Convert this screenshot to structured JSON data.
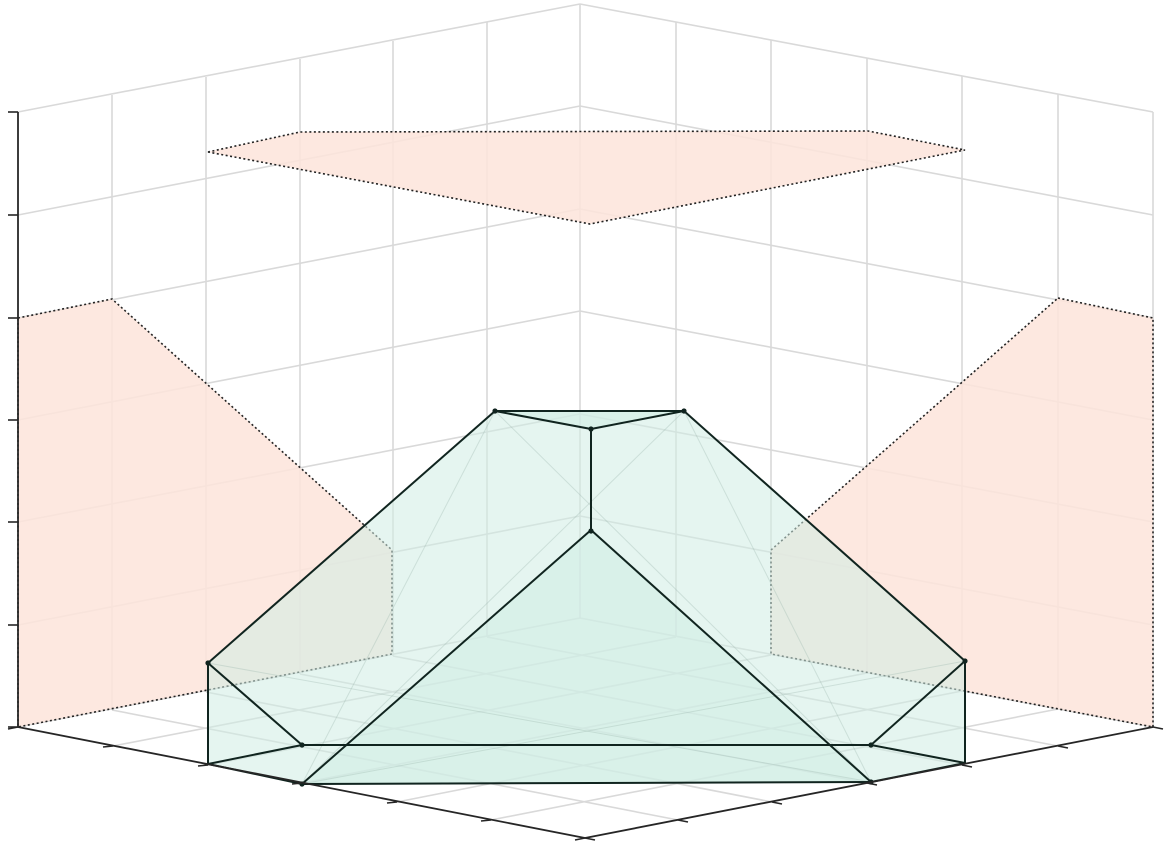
{
  "figure": {
    "kind": "3d-polytope-with-projections",
    "colors": {
      "background": "#ffffff",
      "grid": "#d9d9d9",
      "axis": "#262626",
      "projection_fill": "#fde4da",
      "polytope_fill": "#cfece3",
      "polytope_edge": "#10241f"
    },
    "axis_tick_labels": "none",
    "grid": true
  }
}
